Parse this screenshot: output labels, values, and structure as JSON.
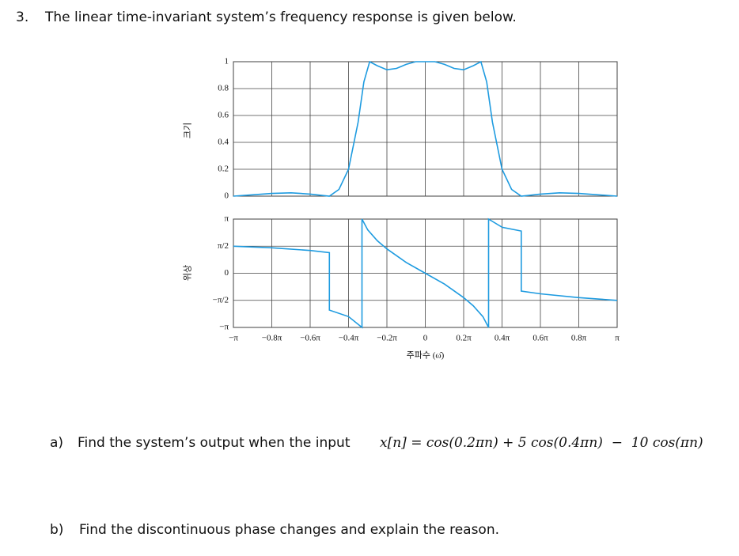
{
  "header": {
    "number": "3.",
    "text": "The linear time-invariant system’s frequency response is given below."
  },
  "chart_data": [
    {
      "type": "line",
      "ylabel": "크기",
      "color": "#1e9be0",
      "x": [
        -1,
        -0.9,
        -0.8,
        -0.7,
        -0.6,
        -0.5,
        -0.45,
        -0.4,
        -0.35,
        -0.32,
        -0.29,
        -0.25,
        -0.2,
        -0.15,
        -0.1,
        -0.05,
        0,
        0.05,
        0.1,
        0.15,
        0.2,
        0.25,
        0.29,
        0.32,
        0.35,
        0.4,
        0.45,
        0.5,
        0.6,
        0.7,
        0.8,
        0.9,
        1
      ],
      "values": [
        0,
        0.01,
        0.02,
        0.025,
        0.015,
        0,
        0.05,
        0.2,
        0.55,
        0.85,
        1,
        0.97,
        0.94,
        0.95,
        0.98,
        1,
        1,
        1,
        0.98,
        0.95,
        0.94,
        0.97,
        1,
        0.85,
        0.55,
        0.2,
        0.05,
        0,
        0.015,
        0.025,
        0.02,
        0.01,
        0
      ],
      "xlim": [
        -1,
        1
      ],
      "xticks": [
        -1,
        -0.8,
        -0.6,
        -0.4,
        -0.2,
        0,
        0.2,
        0.4,
        0.6,
        0.8,
        1
      ],
      "ylim": [
        0,
        1
      ],
      "yticks": [
        0,
        0.2,
        0.4,
        0.6,
        0.8,
        1
      ],
      "grid": true
    },
    {
      "type": "line",
      "ylabel": "위상",
      "xlabel": "주파수 (ω̂)",
      "color": "#1e9be0",
      "x": [
        -1,
        -0.8,
        -0.6,
        -0.5,
        -0.5,
        -0.4,
        -0.33,
        -0.33,
        -0.3,
        -0.25,
        -0.2,
        -0.1,
        0,
        0.1,
        0.2,
        0.25,
        0.3,
        0.33,
        0.33,
        0.4,
        0.5,
        0.5,
        0.6,
        0.8,
        1
      ],
      "values": [
        0.5,
        0.47,
        0.42,
        0.38,
        -0.68,
        -0.8,
        -1,
        1,
        0.8,
        0.6,
        0.45,
        0.2,
        0,
        -0.2,
        -0.45,
        -0.6,
        -0.8,
        -1,
        1,
        0.85,
        0.78,
        -0.33,
        -0.38,
        -0.45,
        -0.5
      ],
      "xlim": [
        -1,
        1
      ],
      "xticks": [
        {
          "value": -1,
          "label": "−π"
        },
        {
          "value": -0.8,
          "label": "−0.8π"
        },
        {
          "value": -0.6,
          "label": "−0.6π"
        },
        {
          "value": -0.4,
          "label": "−0.4π"
        },
        {
          "value": -0.2,
          "label": "−0.2π"
        },
        0,
        {
          "value": 0.2,
          "label": "0.2π"
        },
        {
          "value": 0.4,
          "label": "0.4π"
        },
        {
          "value": 0.6,
          "label": "0.6π"
        },
        {
          "value": 0.8,
          "label": "0.8π"
        },
        {
          "value": 1,
          "label": "π"
        }
      ],
      "ylim": [
        -1,
        1
      ],
      "yticks": [
        {
          "value": -1,
          "label": "−π"
        },
        {
          "value": -0.5,
          "label": "−π/2"
        },
        0,
        {
          "value": 0.5,
          "label": "π/2"
        },
        {
          "value": 1,
          "label": "π"
        }
      ],
      "grid": true
    }
  ],
  "questions": [
    {
      "label": "a)",
      "text": "Find the system’s output when the input",
      "formula": "x[n] = cos(0.2πn) + 5 cos(0.4πn)  −  10 cos(πn)"
    },
    {
      "label": "b)",
      "text": "Find the discontinuous phase changes and explain the reason."
    }
  ]
}
